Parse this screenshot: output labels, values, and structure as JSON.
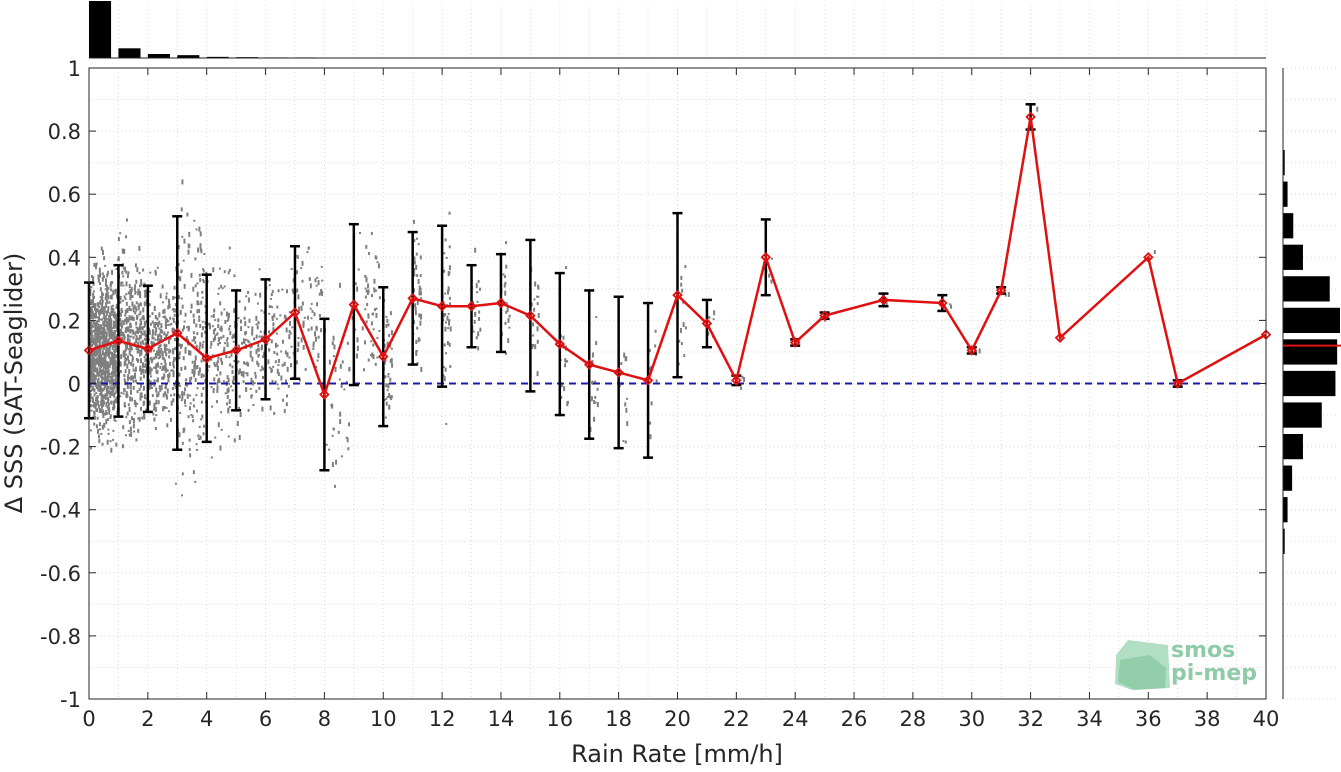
{
  "chart_data": {
    "type": "scatter",
    "title": "",
    "xlabel": "Rain Rate [mm/h]",
    "ylabel": "Δ SSS (SAT-Seaglider)",
    "xlim": [
      0,
      40
    ],
    "ylim": [
      -1,
      1
    ],
    "xticks": [
      0,
      2,
      4,
      6,
      8,
      10,
      12,
      14,
      16,
      18,
      20,
      22,
      24,
      26,
      28,
      30,
      32,
      34,
      36,
      38,
      40
    ],
    "yticks": [
      -1,
      -0.8,
      -0.6,
      -0.4,
      -0.2,
      0,
      0.2,
      0.4,
      0.6,
      0.8,
      1
    ],
    "grid": true,
    "zero_line": {
      "y": 0,
      "color": "#1a1aa8",
      "style": "dashed"
    },
    "mean_series": {
      "color": "#e01010",
      "x": [
        0,
        1,
        2,
        3,
        4,
        5,
        6,
        7,
        8,
        9,
        10,
        11,
        12,
        13,
        14,
        15,
        16,
        17,
        18,
        19,
        20,
        21,
        22,
        23,
        24,
        25,
        27,
        29,
        30,
        31,
        32,
        33,
        36,
        37,
        40
      ],
      "y": [
        0.105,
        0.135,
        0.11,
        0.16,
        0.08,
        0.105,
        0.14,
        0.225,
        -0.035,
        0.25,
        0.085,
        0.27,
        0.245,
        0.245,
        0.255,
        0.215,
        0.125,
        0.06,
        0.035,
        0.01,
        0.28,
        0.19,
        0.01,
        0.4,
        0.13,
        0.215,
        0.265,
        0.255,
        0.105,
        0.295,
        0.845,
        0.145,
        0.4,
        0.0,
        0.155
      ],
      "std": [
        0.215,
        0.24,
        0.2,
        0.37,
        0.265,
        0.19,
        0.19,
        0.21,
        0.24,
        0.255,
        0.22,
        0.21,
        0.255,
        0.13,
        0.155,
        0.24,
        0.225,
        0.235,
        0.24,
        0.245,
        0.26,
        0.075,
        0.015,
        0.12,
        0.01,
        0.01,
        0.02,
        0.025,
        0.01,
        0.01,
        0.04,
        0.0,
        0.0,
        0.01,
        0.0
      ]
    },
    "scatter_color": "#7f7f7f",
    "top_histogram": {
      "bins": [
        0,
        1,
        2,
        3,
        4,
        5,
        6,
        7
      ],
      "relative_counts": [
        1.0,
        0.17,
        0.07,
        0.05,
        0.02,
        0.015,
        0.01,
        0.01
      ]
    },
    "right_histogram": {
      "bin_centers": [
        0.7,
        0.6,
        0.5,
        0.4,
        0.3,
        0.2,
        0.1,
        0.0,
        -0.1,
        -0.2,
        -0.3,
        -0.4,
        -0.5
      ],
      "relative_counts": [
        0.03,
        0.08,
        0.18,
        0.35,
        0.82,
        1.0,
        0.95,
        0.92,
        0.68,
        0.35,
        0.16,
        0.08,
        0.03
      ],
      "mean_marker": 0.12
    }
  },
  "logo": {
    "line1": "smos",
    "line2": "pi-mep"
  }
}
